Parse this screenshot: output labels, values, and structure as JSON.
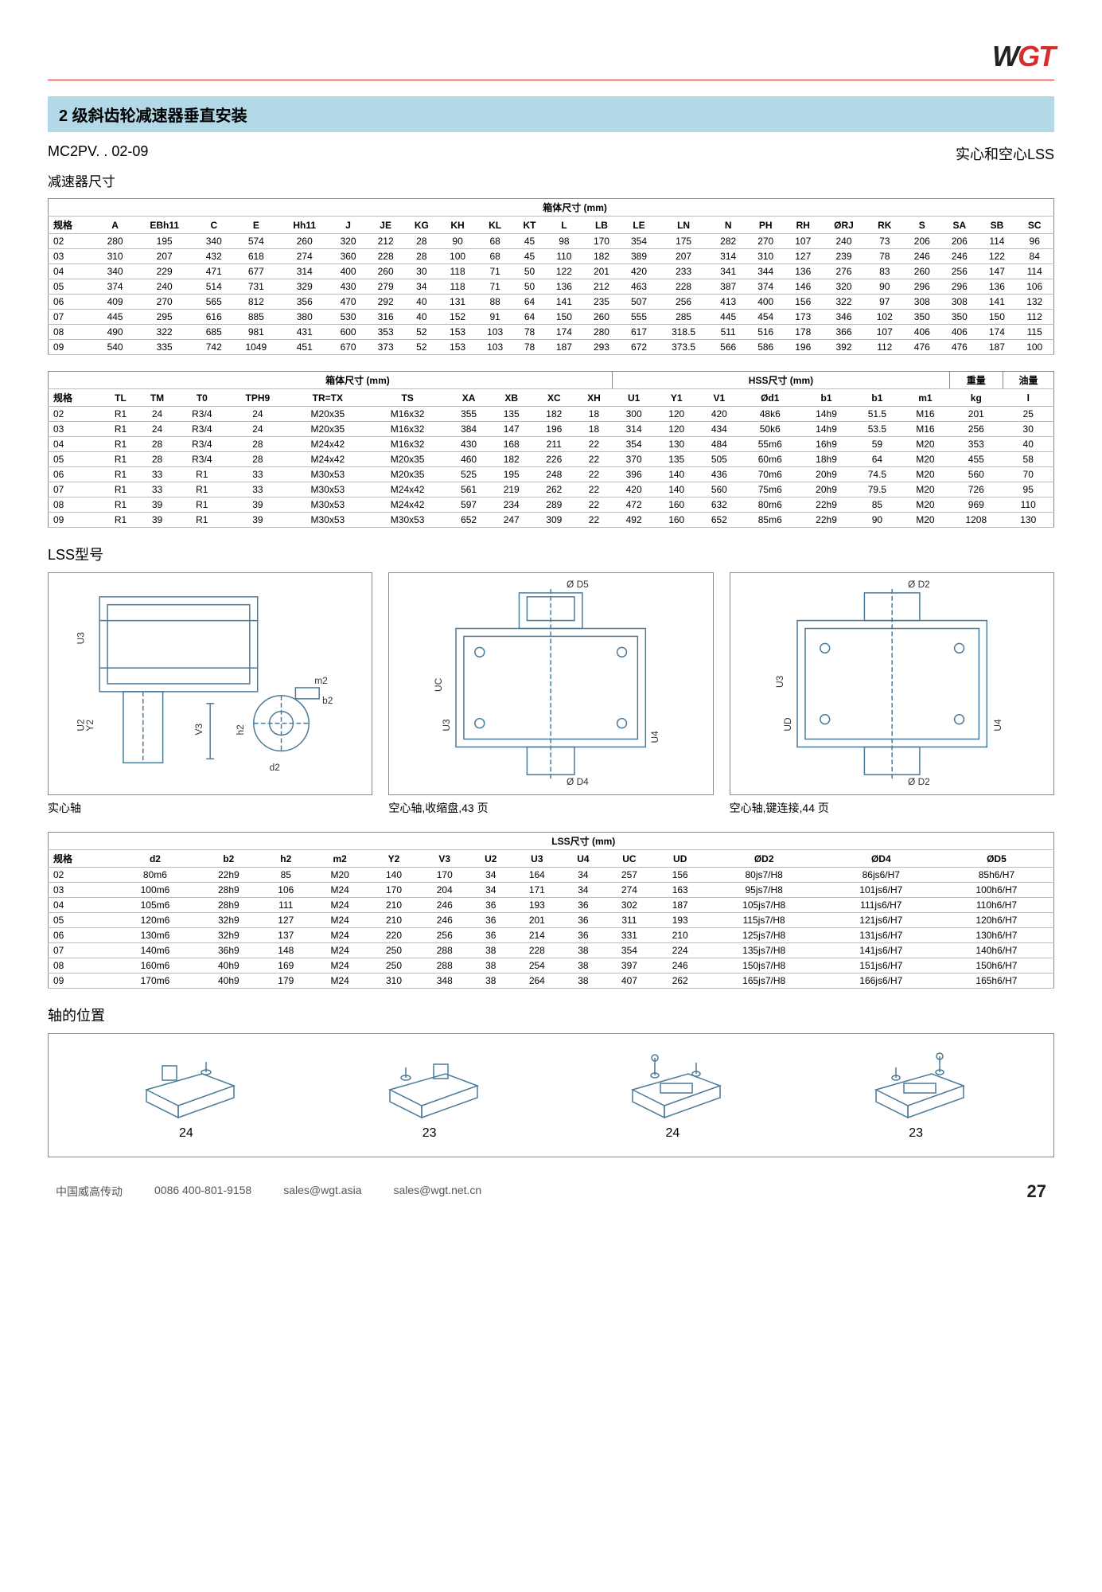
{
  "logo": {
    "part1": "W",
    "part2": "GT"
  },
  "section_title": "2 级斜齿轮减速器垂直安装",
  "model_code": "MC2PV. . 02-09",
  "lss_label": "实心和空心LSS",
  "dim_title": "减速器尺寸",
  "table1": {
    "group_header": "箱体尺寸 (mm)",
    "headers": [
      "规格",
      "A",
      "EBh11",
      "C",
      "E",
      "Hh11",
      "J",
      "JE",
      "KG",
      "KH",
      "KL",
      "KT",
      "L",
      "LB",
      "LE",
      "LN",
      "N",
      "PH",
      "RH",
      "ØRJ",
      "RK",
      "S",
      "SA",
      "SB",
      "SC"
    ],
    "rows": [
      [
        "02",
        "280",
        "195",
        "340",
        "574",
        "260",
        "320",
        "212",
        "28",
        "90",
        "68",
        "45",
        "98",
        "170",
        "354",
        "175",
        "282",
        "270",
        "107",
        "240",
        "73",
        "206",
        "206",
        "114",
        "96"
      ],
      [
        "03",
        "310",
        "207",
        "432",
        "618",
        "274",
        "360",
        "228",
        "28",
        "100",
        "68",
        "45",
        "110",
        "182",
        "389",
        "207",
        "314",
        "310",
        "127",
        "239",
        "78",
        "246",
        "246",
        "122",
        "84"
      ],
      [
        "04",
        "340",
        "229",
        "471",
        "677",
        "314",
        "400",
        "260",
        "30",
        "118",
        "71",
        "50",
        "122",
        "201",
        "420",
        "233",
        "341",
        "344",
        "136",
        "276",
        "83",
        "260",
        "256",
        "147",
        "114"
      ],
      [
        "05",
        "374",
        "240",
        "514",
        "731",
        "329",
        "430",
        "279",
        "34",
        "118",
        "71",
        "50",
        "136",
        "212",
        "463",
        "228",
        "387",
        "374",
        "146",
        "320",
        "90",
        "296",
        "296",
        "136",
        "106"
      ],
      [
        "06",
        "409",
        "270",
        "565",
        "812",
        "356",
        "470",
        "292",
        "40",
        "131",
        "88",
        "64",
        "141",
        "235",
        "507",
        "256",
        "413",
        "400",
        "156",
        "322",
        "97",
        "308",
        "308",
        "141",
        "132"
      ],
      [
        "07",
        "445",
        "295",
        "616",
        "885",
        "380",
        "530",
        "316",
        "40",
        "152",
        "91",
        "64",
        "150",
        "260",
        "555",
        "285",
        "445",
        "454",
        "173",
        "346",
        "102",
        "350",
        "350",
        "150",
        "112"
      ],
      [
        "08",
        "490",
        "322",
        "685",
        "981",
        "431",
        "600",
        "353",
        "52",
        "153",
        "103",
        "78",
        "174",
        "280",
        "617",
        "318.5",
        "511",
        "516",
        "178",
        "366",
        "107",
        "406",
        "406",
        "174",
        "115"
      ],
      [
        "09",
        "540",
        "335",
        "742",
        "1049",
        "451",
        "670",
        "373",
        "52",
        "153",
        "103",
        "78",
        "187",
        "293",
        "672",
        "373.5",
        "566",
        "586",
        "196",
        "392",
        "112",
        "476",
        "476",
        "187",
        "100"
      ]
    ]
  },
  "table2": {
    "group_headers": [
      "箱体尺寸 (mm)",
      "HSS尺寸 (mm)",
      "重量",
      "油量"
    ],
    "headers": [
      "规格",
      "TL",
      "TM",
      "T0",
      "TPH9",
      "TR=TX",
      "TS",
      "XA",
      "XB",
      "XC",
      "XH",
      "U1",
      "Y1",
      "V1",
      "Ød1",
      "b1",
      "b1",
      "m1",
      "kg",
      "l"
    ],
    "rows": [
      [
        "02",
        "R1",
        "24",
        "R3/4",
        "24",
        "M20x35",
        "M16x32",
        "355",
        "135",
        "182",
        "18",
        "300",
        "120",
        "420",
        "48k6",
        "14h9",
        "51.5",
        "M16",
        "201",
        "25"
      ],
      [
        "03",
        "R1",
        "24",
        "R3/4",
        "24",
        "M20x35",
        "M16x32",
        "384",
        "147",
        "196",
        "18",
        "314",
        "120",
        "434",
        "50k6",
        "14h9",
        "53.5",
        "M16",
        "256",
        "30"
      ],
      [
        "04",
        "R1",
        "28",
        "R3/4",
        "28",
        "M24x42",
        "M16x32",
        "430",
        "168",
        "211",
        "22",
        "354",
        "130",
        "484",
        "55m6",
        "16h9",
        "59",
        "M20",
        "353",
        "40"
      ],
      [
        "05",
        "R1",
        "28",
        "R3/4",
        "28",
        "M24x42",
        "M20x35",
        "460",
        "182",
        "226",
        "22",
        "370",
        "135",
        "505",
        "60m6",
        "18h9",
        "64",
        "M20",
        "455",
        "58"
      ],
      [
        "06",
        "R1",
        "33",
        "R1",
        "33",
        "M30x53",
        "M20x35",
        "525",
        "195",
        "248",
        "22",
        "396",
        "140",
        "436",
        "70m6",
        "20h9",
        "74.5",
        "M20",
        "560",
        "70"
      ],
      [
        "07",
        "R1",
        "33",
        "R1",
        "33",
        "M30x53",
        "M24x42",
        "561",
        "219",
        "262",
        "22",
        "420",
        "140",
        "560",
        "75m6",
        "20h9",
        "79.5",
        "M20",
        "726",
        "95"
      ],
      [
        "08",
        "R1",
        "39",
        "R1",
        "39",
        "M30x53",
        "M24x42",
        "597",
        "234",
        "289",
        "22",
        "472",
        "160",
        "632",
        "80m6",
        "22h9",
        "85",
        "M20",
        "969",
        "110"
      ],
      [
        "09",
        "R1",
        "39",
        "R1",
        "39",
        "M30x53",
        "M30x53",
        "652",
        "247",
        "309",
        "22",
        "492",
        "160",
        "652",
        "85m6",
        "22h9",
        "90",
        "M20",
        "1208",
        "130"
      ]
    ]
  },
  "lss_model_title": "LSS型号",
  "diagrams": [
    {
      "caption": "实心轴",
      "labels": [
        "U3",
        "U2",
        "Y2",
        "V3",
        "h2",
        "d2",
        "m2",
        "b2"
      ]
    },
    {
      "caption": "空心轴,收缩盘,43 页",
      "labels": [
        "Ø D5",
        "UC",
        "U3",
        "U4",
        "Ø D4"
      ]
    },
    {
      "caption": "空心轴,键连接,44 页",
      "labels": [
        "Ø D2",
        "U3",
        "U4",
        "UD",
        "Ø D2"
      ]
    }
  ],
  "table3": {
    "group_header": "LSS尺寸 (mm)",
    "headers": [
      "规格",
      "d2",
      "b2",
      "h2",
      "m2",
      "Y2",
      "V3",
      "U2",
      "U3",
      "U4",
      "UC",
      "UD",
      "ØD2",
      "ØD4",
      "ØD5"
    ],
    "rows": [
      [
        "02",
        "80m6",
        "22h9",
        "85",
        "M20",
        "140",
        "170",
        "34",
        "164",
        "34",
        "257",
        "156",
        "80js7/H8",
        "86js6/H7",
        "85h6/H7"
      ],
      [
        "03",
        "100m6",
        "28h9",
        "106",
        "M24",
        "170",
        "204",
        "34",
        "171",
        "34",
        "274",
        "163",
        "95js7/H8",
        "101js6/H7",
        "100h6/H7"
      ],
      [
        "04",
        "105m6",
        "28h9",
        "111",
        "M24",
        "210",
        "246",
        "36",
        "193",
        "36",
        "302",
        "187",
        "105js7/H8",
        "111js6/H7",
        "110h6/H7"
      ],
      [
        "05",
        "120m6",
        "32h9",
        "127",
        "M24",
        "210",
        "246",
        "36",
        "201",
        "36",
        "311",
        "193",
        "115js7/H8",
        "121js6/H7",
        "120h6/H7"
      ],
      [
        "06",
        "130m6",
        "32h9",
        "137",
        "M24",
        "220",
        "256",
        "36",
        "214",
        "36",
        "331",
        "210",
        "125js7/H8",
        "131js6/H7",
        "130h6/H7"
      ],
      [
        "07",
        "140m6",
        "36h9",
        "148",
        "M24",
        "250",
        "288",
        "38",
        "228",
        "38",
        "354",
        "224",
        "135js7/H8",
        "141js6/H7",
        "140h6/H7"
      ],
      [
        "08",
        "160m6",
        "40h9",
        "169",
        "M24",
        "250",
        "288",
        "38",
        "254",
        "38",
        "397",
        "246",
        "150js7/H8",
        "151js6/H7",
        "150h6/H7"
      ],
      [
        "09",
        "170m6",
        "40h9",
        "179",
        "M24",
        "310",
        "348",
        "38",
        "264",
        "38",
        "407",
        "262",
        "165js7/H8",
        "166js6/H7",
        "165h6/H7"
      ]
    ]
  },
  "shaft_pos_title": "轴的位置",
  "shaft_positions": [
    "24",
    "23",
    "24",
    "23"
  ],
  "footer": {
    "company": "中国威高传动",
    "phone": "0086 400-801-9158",
    "email1": "sales@wgt.asia",
    "email2": "sales@wgt.net.cn",
    "page": "27"
  },
  "colors": {
    "accent": "#d32f2f",
    "section_bg": "#b3d9e8",
    "border": "#888888",
    "line": "#4a7a9a"
  }
}
